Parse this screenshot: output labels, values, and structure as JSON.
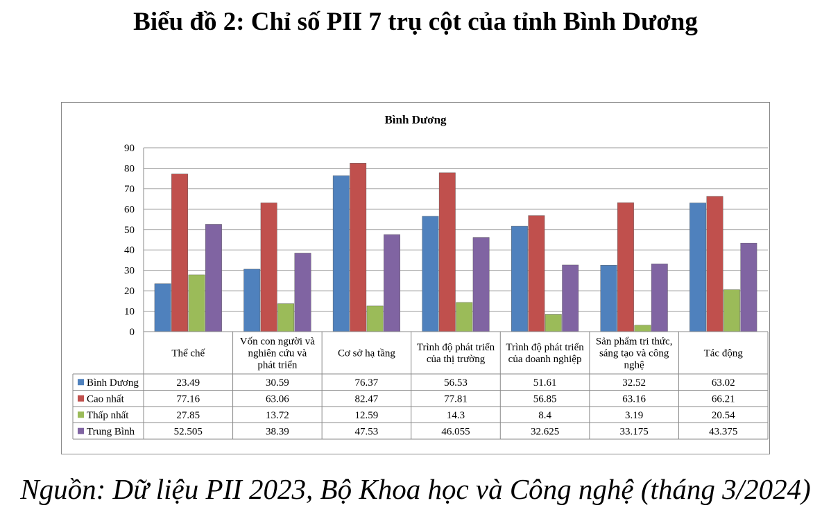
{
  "page": {
    "title": "Biểu đồ 2: Chỉ số PII 7 trụ cột của tỉnh Bình Dương",
    "source": "Nguồn: Dữ liệu PII 2023, Bộ Khoa học và Công nghệ (tháng 3/2024)"
  },
  "chart_data": {
    "type": "bar",
    "title": "Bình Dương",
    "xlabel": "",
    "ylabel": "",
    "ylim": [
      0,
      90
    ],
    "yticks": [
      0,
      10,
      20,
      30,
      40,
      50,
      60,
      70,
      80,
      90
    ],
    "grid": true,
    "legend": "data-table-left",
    "categories": [
      [
        "Thể chế"
      ],
      [
        "Vốn con người và",
        "nghiên cứu và",
        "phát triển"
      ],
      [
        "Cơ sở hạ tầng"
      ],
      [
        "Trình độ phát triển",
        "của thị trường"
      ],
      [
        "Trình độ phát triển",
        "của doanh nghiệp"
      ],
      [
        "Sản phẩm tri thức,",
        "sáng tạo và công",
        "nghệ"
      ],
      [
        "Tác động"
      ]
    ],
    "series": [
      {
        "name": "Bình Dương",
        "color": "#4F81BD",
        "values": [
          23.49,
          30.59,
          76.37,
          56.53,
          51.61,
          32.52,
          63.02
        ],
        "labels": [
          "23.49",
          "30.59",
          "76.37",
          "56.53",
          "51.61",
          "32.52",
          "63.02"
        ]
      },
      {
        "name": "Cao nhất",
        "color": "#C0504D",
        "values": [
          77.16,
          63.06,
          82.47,
          77.81,
          56.85,
          63.16,
          66.21
        ],
        "labels": [
          "77.16",
          "63.06",
          "82.47",
          "77.81",
          "56.85",
          "63.16",
          "66.21"
        ]
      },
      {
        "name": "Thấp nhất",
        "color": "#9BBB59",
        "values": [
          27.85,
          13.72,
          12.59,
          14.3,
          8.4,
          3.19,
          20.54
        ],
        "labels": [
          "27.85",
          "13.72",
          "12.59",
          "14.3",
          "8.4",
          "3.19",
          "20.54"
        ]
      },
      {
        "name": "Trung Bình",
        "color": "#8064A2",
        "values": [
          52.505,
          38.39,
          47.53,
          46.055,
          32.625,
          33.175,
          43.375
        ],
        "labels": [
          "52.505",
          "38.39",
          "47.53",
          "46.055",
          "32.625",
          "33.175",
          "43.375"
        ]
      }
    ]
  }
}
